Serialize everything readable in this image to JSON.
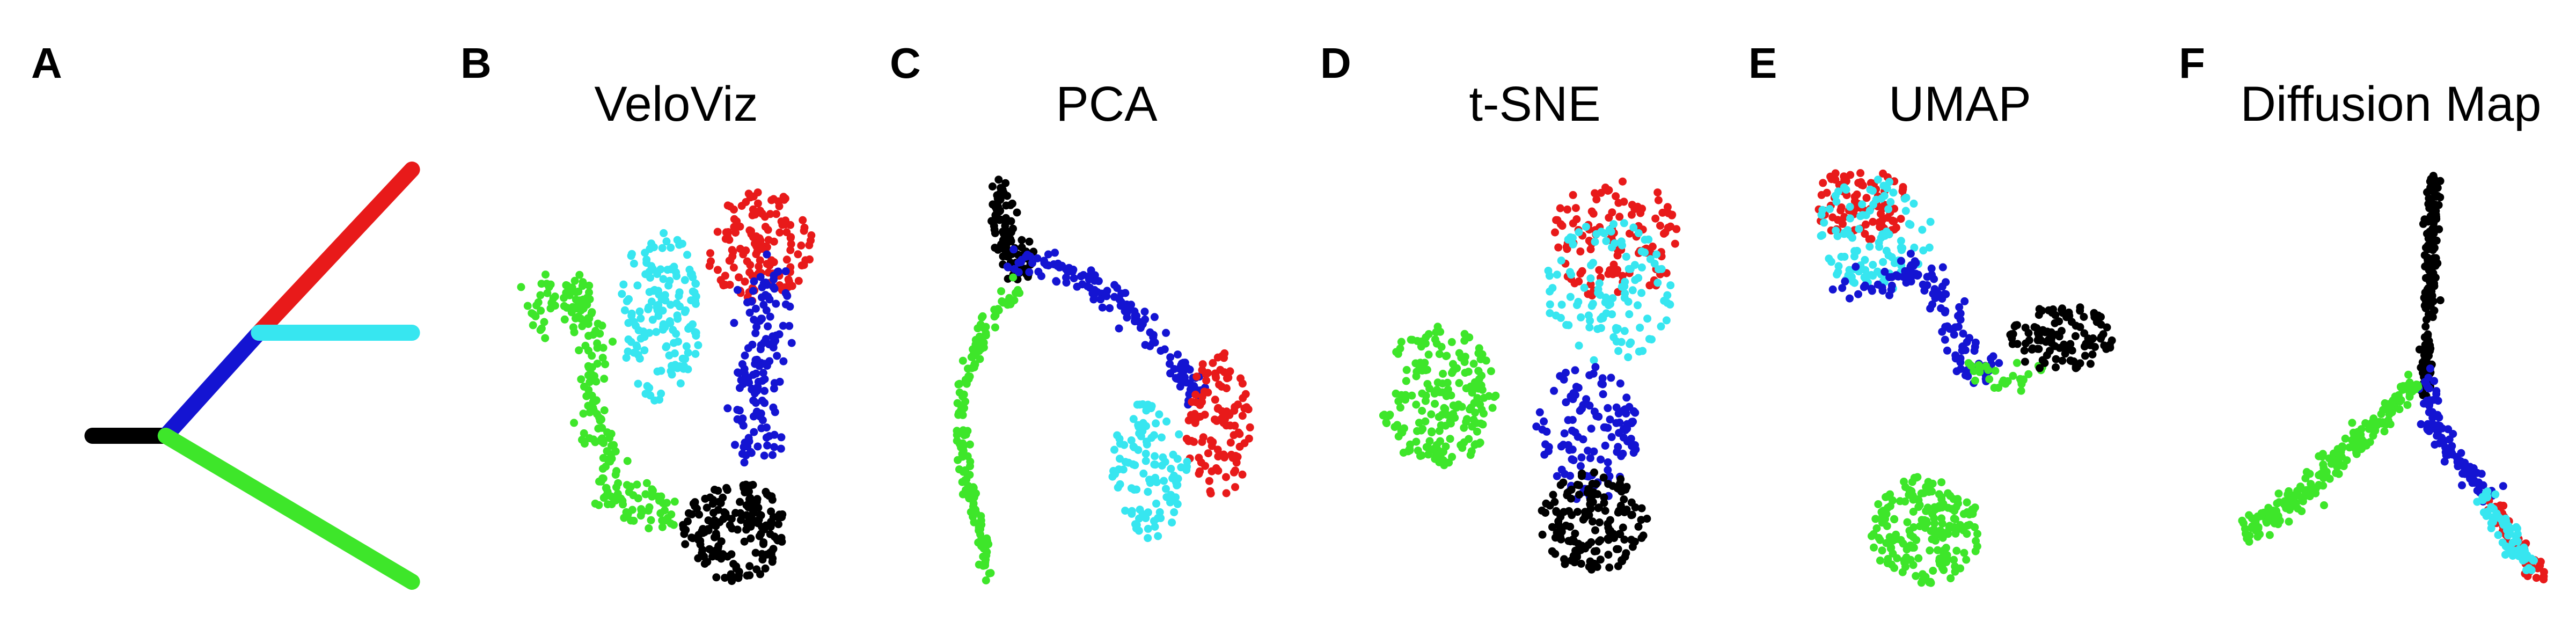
{
  "figure": {
    "panels": [
      {
        "letter": "A",
        "title": ""
      },
      {
        "letter": "B",
        "title": "VeloViz"
      },
      {
        "letter": "C",
        "title": "PCA"
      },
      {
        "letter": "D",
        "title": "t-SNE"
      },
      {
        "letter": "E",
        "title": "UMAP"
      },
      {
        "letter": "F",
        "title": "Diffusion Map"
      }
    ]
  },
  "colors": {
    "black": "#000000",
    "blue": "#1414d2",
    "red": "#e81a1a",
    "cyan": "#37e6f0",
    "green": "#3ee62a"
  },
  "chart_data": [
    {
      "panel": "A",
      "type": "line",
      "title": "",
      "axes": "none",
      "grid": false,
      "legend": "none",
      "series": [
        {
          "color": "black",
          "points": [
            [
              0.02,
              0.64
            ],
            [
              0.24,
              0.64
            ]
          ]
        },
        {
          "color": "blue",
          "points": [
            [
              0.24,
              0.64
            ],
            [
              0.52,
              0.4
            ]
          ]
        },
        {
          "color": "red",
          "points": [
            [
              0.52,
              0.4
            ],
            [
              0.98,
              0.02
            ]
          ]
        },
        {
          "color": "cyan",
          "points": [
            [
              0.52,
              0.4
            ],
            [
              0.98,
              0.4
            ]
          ]
        },
        {
          "color": "green",
          "points": [
            [
              0.24,
              0.64
            ],
            [
              0.98,
              0.98
            ]
          ]
        }
      ]
    },
    {
      "panel": "B",
      "type": "scatter",
      "title": "VeloViz",
      "axes": "none",
      "grid": false,
      "legend": "none",
      "clusters": [
        {
          "color": "green",
          "n": 220,
          "path": [
            [
              0.05,
              0.36
            ],
            [
              0.18,
              0.3
            ],
            [
              0.24,
              0.4
            ],
            [
              0.26,
              0.6
            ],
            [
              0.3,
              0.78
            ],
            [
              0.5,
              0.82
            ]
          ],
          "spread": 0.045
        },
        {
          "color": "cyan",
          "n": 150,
          "center": [
            0.45,
            0.36
          ],
          "radius": [
            0.13,
            0.2
          ]
        },
        {
          "color": "red",
          "n": 140,
          "center": [
            0.76,
            0.2
          ],
          "radius": [
            0.17,
            0.13
          ]
        },
        {
          "color": "blue",
          "n": 140,
          "path": [
            [
              0.8,
              0.26
            ],
            [
              0.76,
              0.45
            ],
            [
              0.73,
              0.68
            ]
          ],
          "spread": 0.06
        },
        {
          "color": "black",
          "n": 170,
          "center": [
            0.68,
            0.86
          ],
          "radius": [
            0.16,
            0.12
          ]
        }
      ]
    },
    {
      "panel": "C",
      "type": "scatter",
      "title": "PCA",
      "axes": "none",
      "grid": false,
      "legend": "none",
      "clusters": [
        {
          "color": "black",
          "n": 95,
          "path": [
            [
              0.16,
              0.03
            ],
            [
              0.19,
              0.18
            ],
            [
              0.24,
              0.25
            ]
          ],
          "spread": 0.035
        },
        {
          "color": "blue",
          "n": 140,
          "path": [
            [
              0.2,
              0.23
            ],
            [
              0.4,
              0.25
            ],
            [
              0.58,
              0.35
            ],
            [
              0.72,
              0.46
            ],
            [
              0.78,
              0.55
            ]
          ],
          "spread": 0.03
        },
        {
          "color": "green",
          "n": 160,
          "path": [
            [
              0.23,
              0.3
            ],
            [
              0.12,
              0.38
            ],
            [
              0.05,
              0.55
            ],
            [
              0.06,
              0.72
            ],
            [
              0.1,
              0.85
            ],
            [
              0.14,
              0.98
            ]
          ],
          "spread": 0.018
        },
        {
          "color": "red",
          "n": 110,
          "center": [
            0.85,
            0.62
          ],
          "radius": [
            0.1,
            0.18
          ]
        },
        {
          "color": "cyan",
          "n": 110,
          "center": [
            0.64,
            0.72
          ],
          "radius": [
            0.12,
            0.17
          ]
        }
      ]
    },
    {
      "panel": "D",
      "type": "scatter",
      "title": "t-SNE",
      "axes": "none",
      "grid": false,
      "legend": "none",
      "clusters": [
        {
          "color": "green",
          "n": 200,
          "center": [
            0.2,
            0.55
          ],
          "radius": [
            0.18,
            0.17
          ]
        },
        {
          "color": "red",
          "n": 120,
          "center": [
            0.75,
            0.17
          ],
          "radius": [
            0.2,
            0.15
          ]
        },
        {
          "color": "cyan",
          "n": 120,
          "center": [
            0.73,
            0.3
          ],
          "radius": [
            0.2,
            0.17
          ]
        },
        {
          "color": "blue",
          "n": 120,
          "center": [
            0.66,
            0.64
          ],
          "radius": [
            0.16,
            0.17
          ]
        },
        {
          "color": "black",
          "n": 150,
          "center": [
            0.68,
            0.85
          ],
          "radius": [
            0.17,
            0.12
          ]
        }
      ]
    },
    {
      "panel": "E",
      "type": "scatter",
      "title": "UMAP",
      "axes": "none",
      "grid": false,
      "legend": "none",
      "clusters": [
        {
          "color": "red",
          "n": 90,
          "center": [
            0.18,
            0.09
          ],
          "radius": [
            0.15,
            0.09
          ]
        },
        {
          "color": "cyan",
          "n": 110,
          "center": [
            0.22,
            0.16
          ],
          "radius": [
            0.18,
            0.14
          ]
        },
        {
          "color": "blue",
          "n": 120,
          "path": [
            [
              0.12,
              0.3
            ],
            [
              0.32,
              0.26
            ],
            [
              0.42,
              0.28
            ],
            [
              0.48,
              0.4
            ],
            [
              0.52,
              0.48
            ],
            [
              0.6,
              0.5
            ]
          ],
          "spread": 0.035
        },
        {
          "color": "green",
          "n": 30,
          "path": [
            [
              0.52,
              0.46
            ],
            [
              0.6,
              0.52
            ],
            [
              0.72,
              0.5
            ]
          ],
          "spread": 0.03
        },
        {
          "color": "black",
          "n": 110,
          "center": [
            0.8,
            0.41
          ],
          "radius": [
            0.16,
            0.08
          ]
        },
        {
          "color": "green",
          "n": 190,
          "center": [
            0.38,
            0.87
          ],
          "radius": [
            0.17,
            0.13
          ]
        }
      ]
    },
    {
      "panel": "F",
      "type": "scatter",
      "title": "Diffusion Map",
      "axes": "none",
      "grid": false,
      "legend": "none",
      "clusters": [
        {
          "color": "black",
          "n": 170,
          "path": [
            [
              0.62,
              0.02
            ],
            [
              0.61,
              0.2
            ],
            [
              0.6,
              0.35
            ],
            [
              0.59,
              0.55
            ]
          ],
          "spread": 0.016
        },
        {
          "color": "blue",
          "n": 90,
          "path": [
            [
              0.59,
              0.5
            ],
            [
              0.62,
              0.62
            ],
            [
              0.7,
              0.72
            ],
            [
              0.78,
              0.78
            ]
          ],
          "spread": 0.025
        },
        {
          "color": "green",
          "n": 220,
          "path": [
            [
              0.56,
              0.52
            ],
            [
              0.4,
              0.65
            ],
            [
              0.22,
              0.8
            ],
            [
              0.06,
              0.88
            ]
          ],
          "spread": 0.028
        },
        {
          "color": "red",
          "n": 60,
          "path": [
            [
              0.79,
              0.8
            ],
            [
              0.85,
              0.9
            ],
            [
              0.93,
              0.98
            ]
          ],
          "spread": 0.018
        },
        {
          "color": "cyan",
          "n": 70,
          "path": [
            [
              0.76,
              0.78
            ],
            [
              0.83,
              0.88
            ],
            [
              0.9,
              0.96
            ]
          ],
          "spread": 0.025
        }
      ]
    }
  ]
}
